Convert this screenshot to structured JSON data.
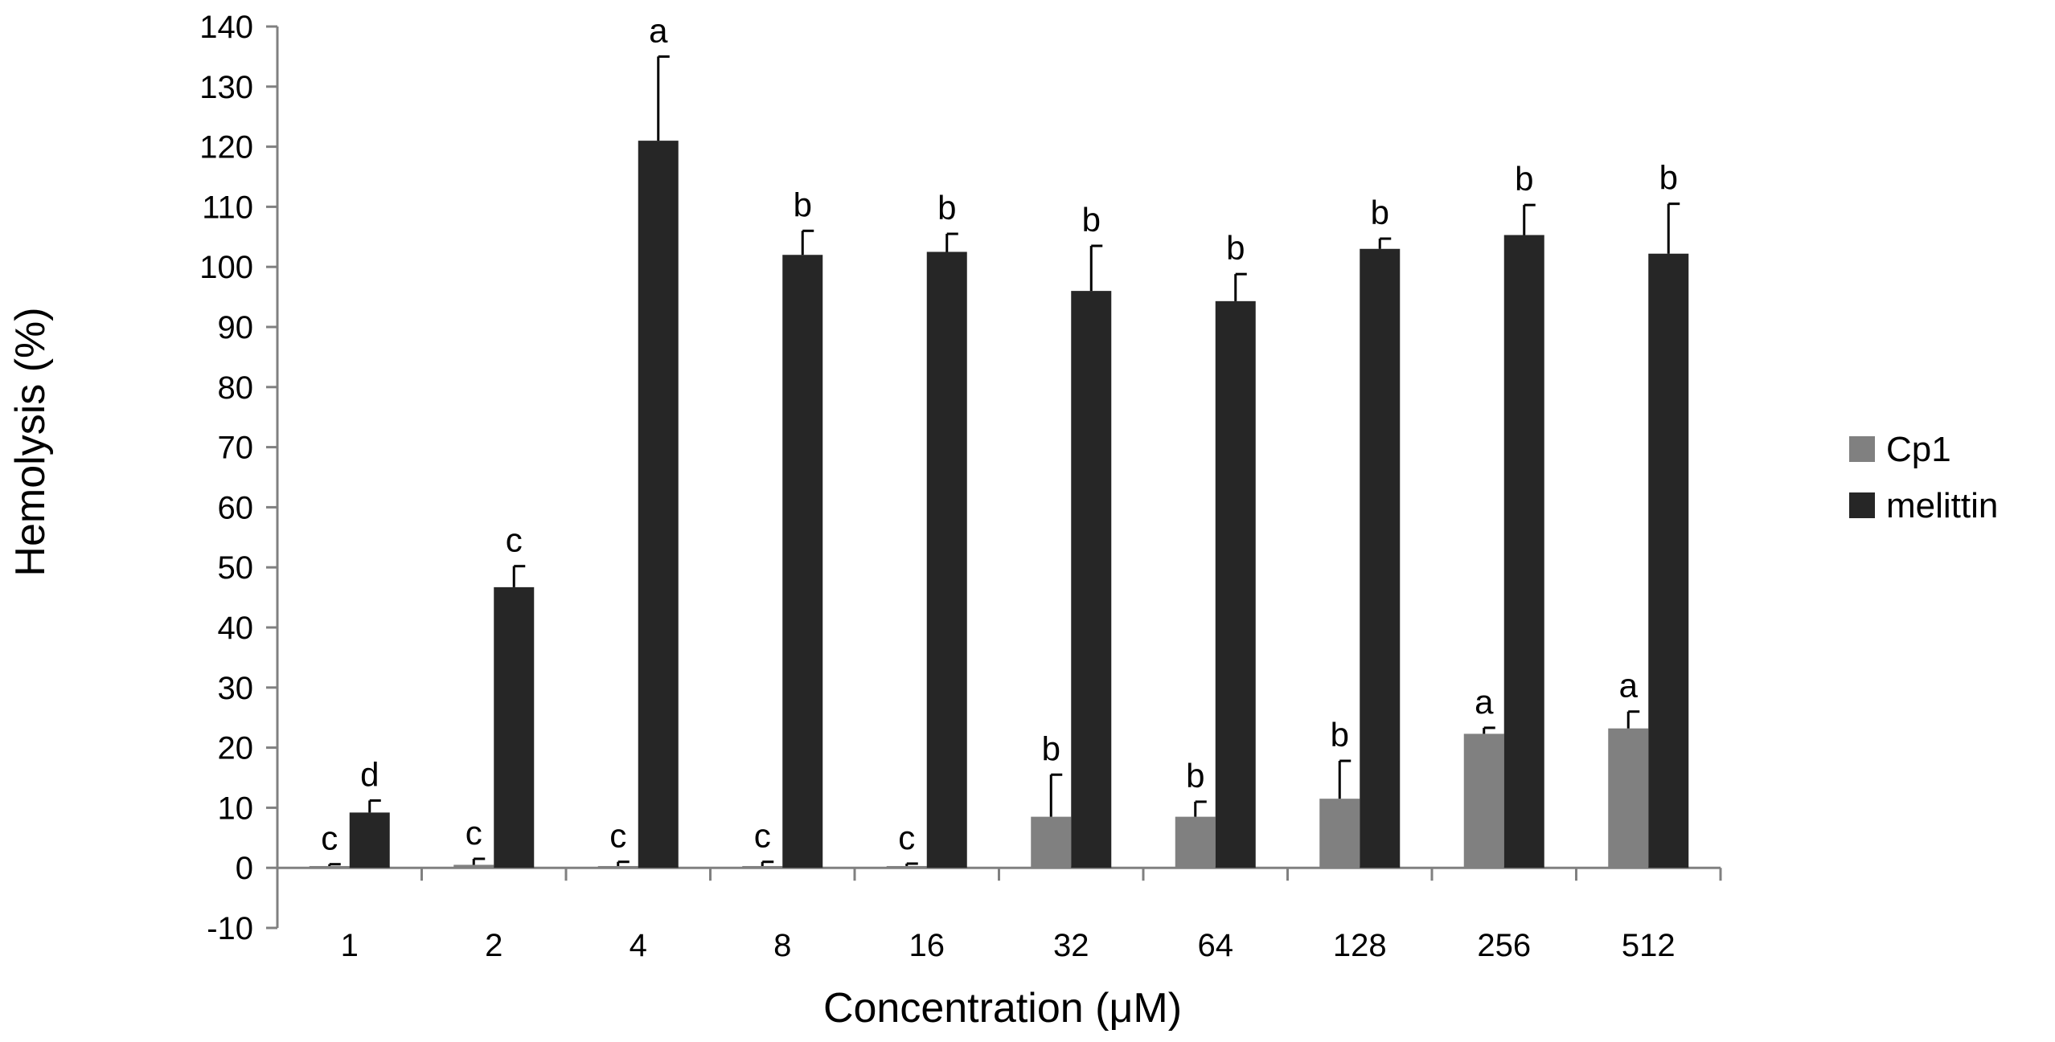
{
  "chart_data": {
    "type": "bar",
    "title": "",
    "xlabel": "Concentration (μM)",
    "ylabel": "Hemolysis (%)",
    "ylim": [
      -10,
      140
    ],
    "ytick_step": 10,
    "categories": [
      "1",
      "2",
      "4",
      "8",
      "16",
      "32",
      "64",
      "128",
      "256",
      "512"
    ],
    "series": [
      {
        "name": "Cp1",
        "color": "#808080",
        "values": [
          0.3,
          0.5,
          0.3,
          0.3,
          0.3,
          8.5,
          8.5,
          11.5,
          22.3,
          23.2
        ],
        "errors": [
          0.3,
          1.0,
          0.7,
          0.7,
          0.4,
          7.0,
          2.5,
          6.3,
          1.0,
          2.8
        ],
        "labels": [
          "c",
          "c",
          "c",
          "c",
          "c",
          "b",
          "b",
          "b",
          "a",
          "a"
        ]
      },
      {
        "name": "melittin",
        "color": "#262626",
        "values": [
          9.2,
          46.7,
          121.0,
          102.0,
          102.5,
          96.0,
          94.3,
          103.0,
          105.3,
          102.2
        ],
        "errors": [
          2.0,
          3.5,
          14.0,
          4.0,
          3.0,
          7.5,
          4.5,
          1.7,
          5.0,
          8.3
        ],
        "labels": [
          "d",
          "c",
          "a",
          "b",
          "b",
          "b",
          "b",
          "b",
          "b",
          "b"
        ]
      }
    ],
    "legend": "right",
    "grid": false
  }
}
